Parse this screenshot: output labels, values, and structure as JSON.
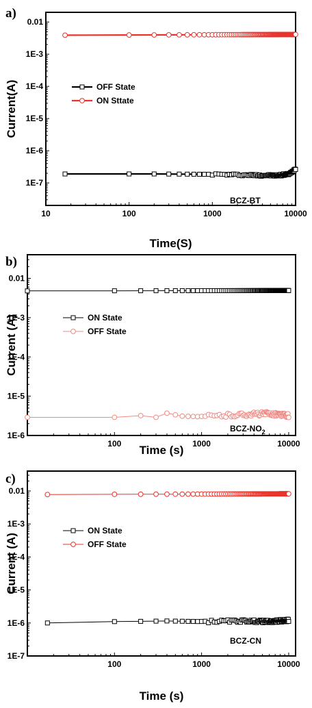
{
  "chart_data": [
    {
      "panel_label": "a)",
      "type": "scatter",
      "x_scale": "log",
      "y_scale": "log",
      "xlim": [
        10,
        10000
      ],
      "ylim": [
        2e-08,
        0.02
      ],
      "x_ticks": [
        10,
        100,
        1000,
        10000
      ],
      "x_tick_labels": [
        "10",
        "100",
        "1000",
        "10000"
      ],
      "y_ticks": [
        1e-07,
        1e-06,
        1e-05,
        0.0001,
        0.001,
        0.01
      ],
      "y_tick_labels": [
        "1E-7",
        "1E-6",
        "1E-5",
        "1E-4",
        "1E-3",
        "0.01"
      ],
      "xlabel": "Time(S)",
      "ylabel": "Current(A)",
      "annotation": "BCZ-BT",
      "annotation_subscript": "",
      "legend_position": "upper-left",
      "series": [
        {
          "name": "OFF State",
          "color": "#000000",
          "line_width": 2.2,
          "marker": "square",
          "x_range": [
            17,
            10000
          ],
          "y_points": [
            [
              17,
              1.9e-07
            ],
            [
              200,
              1.9e-07
            ],
            [
              1000,
              1.85e-07
            ],
            [
              3000,
              1.75e-07
            ],
            [
              6000,
              1.7e-07
            ],
            [
              8500,
              1.9e-07
            ],
            [
              10000,
              2.8e-07
            ]
          ],
          "jitter": 0.06
        },
        {
          "name": "ON Sttate",
          "color": "#e8342c",
          "line_width": 2.2,
          "marker": "circle",
          "x_range": [
            17,
            10000
          ],
          "y_points": [
            [
              17,
              0.0039
            ],
            [
              10000,
              0.0041
            ]
          ],
          "jitter": 0.0
        }
      ]
    },
    {
      "panel_label": "b)",
      "type": "scatter",
      "x_scale": "log",
      "y_scale": "log",
      "xlim": [
        10,
        12000
      ],
      "ylim": [
        1e-06,
        0.04
      ],
      "x_ticks": [
        100,
        1000,
        10000
      ],
      "x_tick_labels": [
        "100",
        "1000",
        "10000"
      ],
      "y_ticks": [
        1e-06,
        1e-05,
        0.0001,
        0.001,
        0.01
      ],
      "y_tick_labels": [
        "1E-6",
        "1E-5",
        "1E-4",
        "1E-3",
        "0.01"
      ],
      "xlabel": "Time (s)",
      "ylabel": "Current (A)",
      "annotation": "BCZ-NO",
      "annotation_subscript": "2",
      "legend_position": "upper-left",
      "series": [
        {
          "name": "ON State",
          "color": "#000000",
          "line_width": 1,
          "marker": "square",
          "x_range": [
            10,
            10000
          ],
          "y_points": [
            [
              10,
              0.0048
            ],
            [
              10000,
              0.0049
            ]
          ],
          "jitter": 0.0
        },
        {
          "name": "OFF State",
          "color": "#f08a84",
          "line_width": 1,
          "marker": "circle",
          "x_range": [
            10,
            10000
          ],
          "y_points": [
            [
              10,
              2.9e-06
            ],
            [
              100,
              2.9e-06
            ],
            [
              200,
              3.2e-06
            ],
            [
              300,
              2.9e-06
            ],
            [
              400,
              3.7e-06
            ],
            [
              600,
              3.1e-06
            ],
            [
              1000,
              3e-06
            ],
            [
              3000,
              3.4e-06
            ],
            [
              6000,
              3.6e-06
            ],
            [
              10000,
              3.2e-06
            ]
          ],
          "jitter": 0.1
        }
      ]
    },
    {
      "panel_label": "c)",
      "type": "scatter",
      "x_scale": "log",
      "y_scale": "log",
      "xlim": [
        10,
        12000
      ],
      "ylim": [
        1e-07,
        0.04
      ],
      "x_ticks": [
        100,
        1000,
        10000
      ],
      "x_tick_labels": [
        "100",
        "1000",
        "10000"
      ],
      "y_ticks": [
        1e-07,
        1e-06,
        1e-05,
        0.0001,
        0.001,
        0.01
      ],
      "y_tick_labels": [
        "1E-7",
        "1E-6",
        "1E-5",
        "1E-4",
        "1E-3",
        "0.01"
      ],
      "xlabel": "Time (s)",
      "ylabel": "Current (A)",
      "annotation": "BCZ-CN",
      "annotation_subscript": "",
      "legend_position": "upper-left",
      "series": [
        {
          "name": "ON State",
          "color": "#000000",
          "line_width": 1,
          "marker": "square",
          "x_range": [
            17,
            10000
          ],
          "y_points": [
            [
              17,
              1e-06
            ],
            [
              100,
              1.1e-06
            ],
            [
              200,
              1.12e-06
            ],
            [
              400,
              1.15e-06
            ],
            [
              1000,
              1.1e-06
            ],
            [
              3000,
              1.15e-06
            ],
            [
              6000,
              1.1e-06
            ],
            [
              10000,
              1.2e-06
            ]
          ],
          "jitter": 0.08
        },
        {
          "name": "OFF State",
          "color": "#e8342c",
          "line_width": 1,
          "marker": "circle",
          "x_range": [
            17,
            10000
          ],
          "y_points": [
            [
              17,
              0.0078
            ],
            [
              10000,
              0.0082
            ]
          ],
          "jitter": 0.0
        }
      ]
    }
  ]
}
